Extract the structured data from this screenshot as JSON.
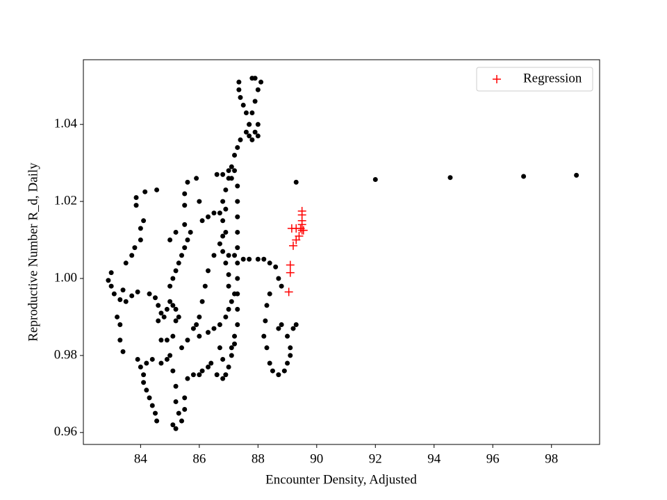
{
  "chart_data": {
    "type": "scatter",
    "x_label": "Encounter Density, Adjusted",
    "y_label": "Reproductive Number R_d, Daily",
    "xlim": [
      82.05,
      99.64
    ],
    "ylim": [
      0.9569,
      1.0568
    ],
    "xticks": [
      84,
      86,
      88,
      90,
      92,
      94,
      96,
      98
    ],
    "yticks": [
      0.96,
      0.98,
      {
        "value": 1.0,
        "label": "1.00"
      },
      1.02,
      1.04
    ],
    "legend": "upper right",
    "series": [
      {
        "color": "#000000",
        "marker": "o",
        "x": [
          82.9,
          83.0,
          83.0,
          83.1,
          83.3,
          83.5,
          83.7,
          83.9,
          83.2,
          83.3,
          83.3,
          83.4,
          83.4,
          83.5,
          83.7,
          83.8,
          84.0,
          84.0,
          84.1,
          83.85,
          83.85,
          84.15,
          84.55,
          83.9,
          84.0,
          84.1,
          84.1,
          84.2,
          84.3,
          84.4,
          84.5,
          84.55,
          84.2,
          84.4,
          84.7,
          84.9,
          85.1,
          84.3,
          84.5,
          84.6,
          84.7,
          84.6,
          84.8,
          84.9,
          85.0,
          85.1,
          85.2,
          85.3,
          85.2,
          85.0,
          85.1,
          85.2,
          85.3,
          85.4,
          85.5,
          85.6,
          85.7,
          85.5,
          85.2,
          85.0,
          84.7,
          84.9,
          85.0,
          85.1,
          85.2,
          85.2,
          85.3,
          85.1,
          85.2,
          85.4,
          85.5,
          85.5,
          85.6,
          85.8,
          86.0,
          85.4,
          85.6,
          85.8,
          86.0,
          85.5,
          85.5,
          85.6,
          85.9,
          86.0,
          86.1,
          86.3,
          86.5,
          86.7,
          86.9,
          86.1,
          86.0,
          85.9,
          86.2,
          86.3,
          86.5,
          86.7,
          86.9,
          86.6,
          86.8,
          87.0,
          87.1,
          86.3,
          86.5,
          86.7,
          86.9,
          87.0,
          87.1,
          87.2,
          86.1,
          86.3,
          86.4,
          86.6,
          86.8,
          86.9,
          87.0,
          87.1,
          87.2,
          86.8,
          86.7,
          86.8,
          86.9,
          87.0,
          87.1,
          87.2,
          87.3,
          87.4,
          87.6,
          87.7,
          87.8,
          87.9,
          88.0,
          88.1,
          87.9,
          87.8,
          87.35,
          87.35,
          87.4,
          87.5,
          87.6,
          87.7,
          87.9,
          88.0,
          87.8,
          87.7,
          88.0,
          87.2,
          87.3,
          87.3,
          87.3,
          87.3,
          87.3,
          87.3,
          87.3,
          87.3,
          87.3,
          87.3,
          87.2,
          87.1,
          86.8,
          86.8,
          86.8,
          86.9,
          87.0,
          87.0,
          87.0,
          87.2,
          87.5,
          87.7,
          88.0,
          88.2,
          88.4,
          88.6,
          88.7,
          88.8,
          88.4,
          88.3,
          88.25,
          88.2,
          88.3,
          88.4,
          88.5,
          88.7,
          88.9,
          89.0,
          89.1,
          89.1,
          89.0,
          89.2,
          89.3,
          88.7,
          88.8,
          89.3,
          92.0,
          94.55,
          97.05,
          98.85
        ],
        "values": [
          0.9995,
          1.0015,
          0.998,
          0.996,
          0.9945,
          0.994,
          0.9955,
          0.9965,
          0.99,
          0.988,
          0.984,
          0.981,
          0.997,
          1.004,
          1.006,
          1.008,
          1.01,
          1.013,
          1.015,
          1.019,
          1.021,
          1.0225,
          1.023,
          0.979,
          0.977,
          0.975,
          0.973,
          0.971,
          0.969,
          0.967,
          0.965,
          0.963,
          0.978,
          0.979,
          0.984,
          0.984,
          0.985,
          0.996,
          0.995,
          0.993,
          0.991,
          0.989,
          0.99,
          0.992,
          0.994,
          0.993,
          0.992,
          0.99,
          0.989,
          0.998,
          1.0,
          1.002,
          1.004,
          1.006,
          1.008,
          1.01,
          1.012,
          1.014,
          1.012,
          1.01,
          0.978,
          0.979,
          0.98,
          0.976,
          0.972,
          0.968,
          0.965,
          0.962,
          0.961,
          0.963,
          0.966,
          0.969,
          0.974,
          0.975,
          0.975,
          0.982,
          0.984,
          0.987,
          0.985,
          1.019,
          1.022,
          1.025,
          1.026,
          1.02,
          1.015,
          1.016,
          1.017,
          1.017,
          1.018,
          0.994,
          0.99,
          0.988,
          0.998,
          1.002,
          1.006,
          1.009,
          1.012,
          1.027,
          1.027,
          1.028,
          1.026,
          0.986,
          0.987,
          0.988,
          0.99,
          0.992,
          0.994,
          0.996,
          0.976,
          0.977,
          0.978,
          0.975,
          0.974,
          0.975,
          0.977,
          0.98,
          0.983,
          0.979,
          0.982,
          1.02,
          1.023,
          1.026,
          1.029,
          1.032,
          1.034,
          1.036,
          1.038,
          1.04,
          1.043,
          1.046,
          1.049,
          1.051,
          1.052,
          1.052,
          1.051,
          1.049,
          1.047,
          1.045,
          1.043,
          1.04,
          1.038,
          1.037,
          1.036,
          1.037,
          1.04,
          1.028,
          1.024,
          1.02,
          1.016,
          1.012,
          1.008,
          1.004,
          1.0,
          0.996,
          0.992,
          0.988,
          0.985,
          0.982,
          1.015,
          1.011,
          1.007,
          1.004,
          1.001,
          0.998,
          1.006,
          1.006,
          1.005,
          1.005,
          1.005,
          1.005,
          1.004,
          1.003,
          1.0,
          0.998,
          0.996,
          0.993,
          0.989,
          0.985,
          0.982,
          0.978,
          0.976,
          0.975,
          0.976,
          0.978,
          0.98,
          0.982,
          0.985,
          0.987,
          0.988,
          0.987,
          0.988,
          1.025,
          1.0257,
          1.0262,
          1.0265,
          1.0268
        ]
      },
      {
        "name": "Regression",
        "color": "#ff0000",
        "marker": "+",
        "x": [
          89.05,
          89.1,
          89.1,
          89.2,
          89.3,
          89.4,
          89.15,
          89.3,
          89.45,
          89.5,
          89.5,
          89.5,
          89.5,
          89.5,
          89.55
        ],
        "values": [
          0.9965,
          1.0015,
          1.0035,
          1.0085,
          1.01,
          1.011,
          1.013,
          1.013,
          1.013,
          1.0125,
          1.014,
          1.015,
          1.0165,
          1.0175,
          1.0125
        ]
      }
    ]
  }
}
